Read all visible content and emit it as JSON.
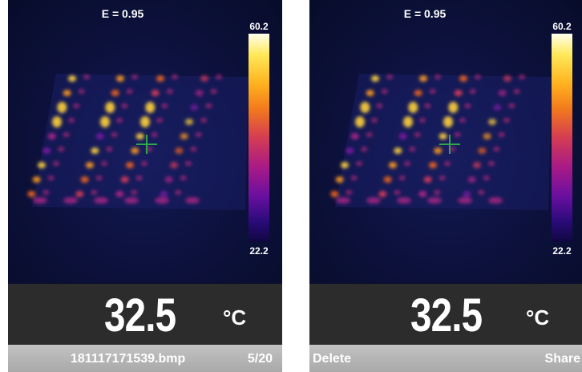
{
  "colors": {
    "screen_bg": "#0a0f2e",
    "reading_bg": "#2c2c2c",
    "bottom_bar_bg": "#b3b3b3",
    "crosshair": "#2fa84a"
  },
  "left_screen": {
    "emissivity": "E = 0.95",
    "scale_max": "60.2",
    "scale_min": "22.2",
    "temperature": "32.5",
    "unit": "°C",
    "filename": "181117171539.bmp",
    "page": "5/20"
  },
  "right_screen": {
    "emissivity": "E = 0.95",
    "scale_max": "60.2",
    "scale_min": "22.2",
    "temperature": "32.5",
    "unit": "°C",
    "delete_label": "Delete",
    "share_label": "Share"
  }
}
